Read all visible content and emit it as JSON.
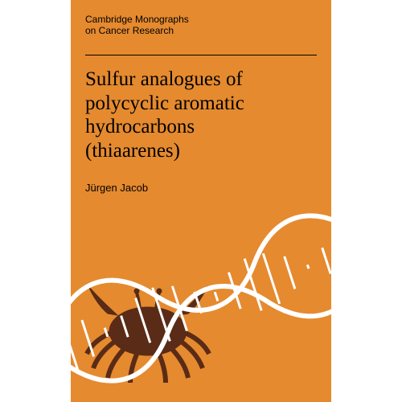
{
  "colors": {
    "background": "#e58a2f",
    "text": "#000000",
    "rule": "#000000",
    "helix": "#ffffff",
    "crab": "#5a2b16"
  },
  "series": {
    "line1": "Cambridge Monographs",
    "line2": "on Cancer Research",
    "fontsize": 12,
    "fontweight": "400"
  },
  "title": {
    "lines": [
      "Sulfur analogues of",
      "polycyclic aromatic",
      "hydrocarbons",
      "(thiaarenes)"
    ],
    "fontsize": 25,
    "fontweight": "400"
  },
  "author": {
    "text": "Jürgen Jacob",
    "fontsize": 13,
    "fontweight": "400"
  },
  "art": {
    "helix_stroke_width": 6,
    "helix_rung_width": 3
  }
}
